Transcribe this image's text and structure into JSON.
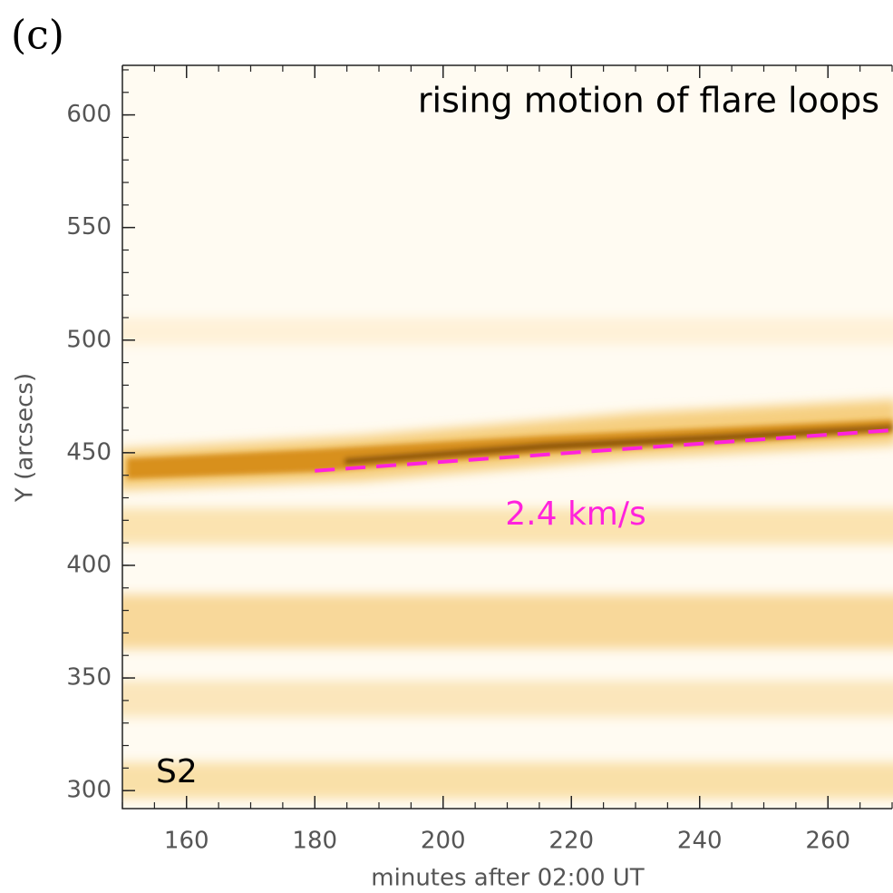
{
  "chart_data": {
    "type": "line",
    "panel_label": "(c)",
    "title": "rising motion of flare loops",
    "annotations": [
      "2.4 km/s",
      "S2"
    ],
    "xlabel": "minutes after 02:00 UT",
    "ylabel": "Y (arcsecs)",
    "xlim": [
      150,
      270
    ],
    "ylim": [
      292,
      622
    ],
    "xticks": [
      160,
      180,
      200,
      220,
      240,
      260
    ],
    "yticks": [
      300,
      350,
      400,
      450,
      500,
      550,
      600
    ],
    "x_minor_step": 5,
    "y_minor_step": 10,
    "series": [
      {
        "color": "#ff22dd",
        "dashed": true,
        "x": [
          180,
          270
        ],
        "values": [
          442,
          460
        ]
      }
    ]
  }
}
